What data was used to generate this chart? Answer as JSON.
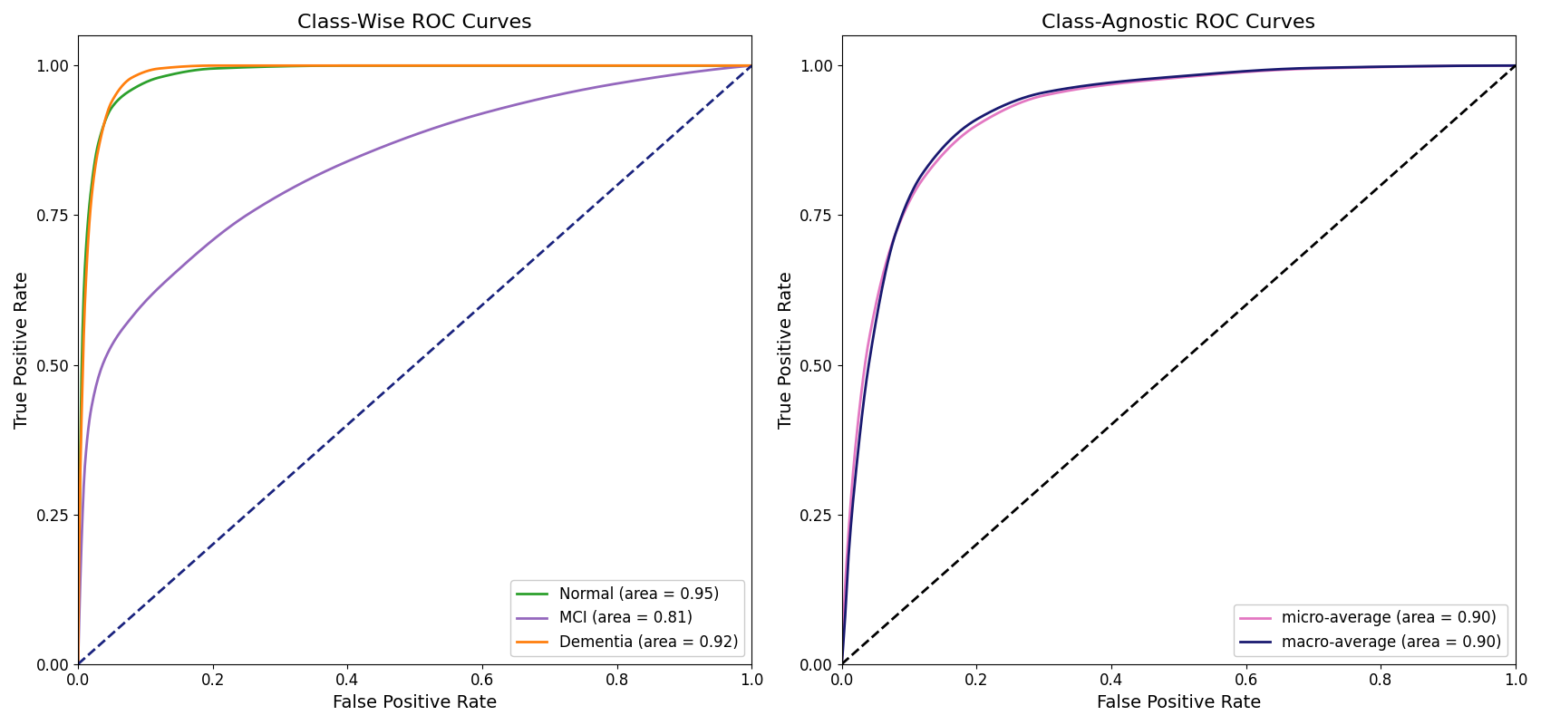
{
  "title_left": "Class-Wise ROC Curves",
  "title_right": "Class-Agnostic ROC Curves",
  "xlabel": "False Positive Rate",
  "ylabel": "True Positive Rate",
  "normal_color": "#2ca02c",
  "mci_color": "#9467bd",
  "dementia_color": "#ff7f0e",
  "micro_color": "#e377c2",
  "macro_color": "#191970",
  "diag_color_left": "#1a237e",
  "diag_color_right": "#000000",
  "legend_normal": "Normal (area = 0.95)",
  "legend_mci": "MCI (area = 0.81)",
  "legend_dementia": "Dementia (area = 0.92)",
  "legend_micro": "micro-average (area = 0.90)",
  "legend_macro": "macro-average (area = 0.90)",
  "figsize": [
    17.0,
    8.0
  ],
  "dpi": 100
}
